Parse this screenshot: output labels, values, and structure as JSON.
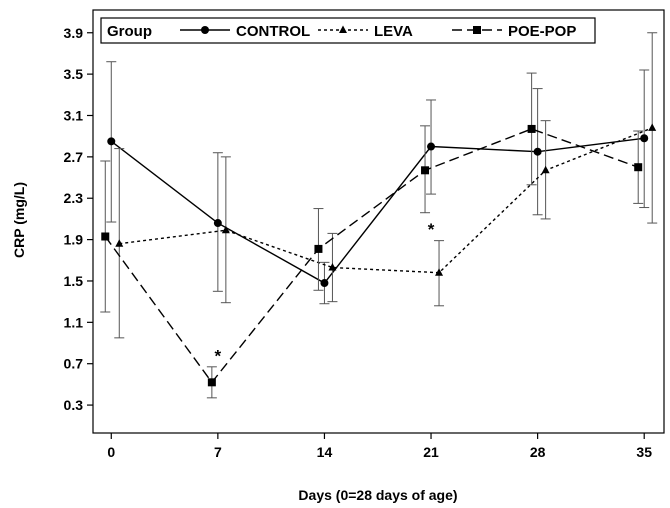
{
  "chart_data": {
    "type": "line",
    "xlabel": "Days (0=28 days of age)",
    "ylabel": "CRP (mg/L)",
    "x_ticks": [
      0,
      7,
      14,
      21,
      28,
      35
    ],
    "y_ticks": [
      0.3,
      0.7,
      1.1,
      1.5,
      1.9,
      2.3,
      2.7,
      3.1,
      3.5,
      3.9
    ],
    "xlim": [
      -1.2,
      36.3
    ],
    "ylim": [
      0.03,
      4.12
    ],
    "grid": false,
    "legend": {
      "title": "Group",
      "placement": "top"
    },
    "series": [
      {
        "name": "CONTROL",
        "marker": "circle",
        "line_style": "solid",
        "x": [
          0,
          7,
          14,
          21,
          28,
          35
        ],
        "y": [
          2.85,
          2.06,
          1.48,
          2.8,
          2.75,
          2.88
        ],
        "err_low": [
          2.07,
          1.4,
          1.28,
          2.34,
          2.14,
          2.21
        ],
        "err_high": [
          3.62,
          2.74,
          1.68,
          3.25,
          3.36,
          3.54
        ]
      },
      {
        "name": "LEVA",
        "marker": "triangle",
        "line_style": "dotted",
        "x": [
          0,
          7,
          14,
          21,
          28,
          35
        ],
        "y": [
          1.86,
          1.99,
          1.63,
          1.58,
          2.57,
          2.98
        ],
        "err_low": [
          0.95,
          1.29,
          1.3,
          1.26,
          2.1,
          2.06
        ],
        "err_high": [
          2.78,
          2.7,
          1.96,
          1.89,
          3.05,
          3.9
        ]
      },
      {
        "name": "POE-POP",
        "marker": "square",
        "line_style": "dashed",
        "x": [
          0,
          7,
          14,
          21,
          28,
          35
        ],
        "y": [
          1.93,
          0.52,
          1.81,
          2.57,
          2.97,
          2.6
        ],
        "err_low": [
          1.2,
          0.37,
          1.41,
          2.16,
          2.43,
          2.25
        ],
        "err_high": [
          2.66,
          0.67,
          2.2,
          3.0,
          3.51,
          2.95
        ]
      }
    ],
    "annotations": [
      {
        "text": "*",
        "x": 7,
        "y": 0.8
      },
      {
        "text": "*",
        "x": 21,
        "y": 2.02
      }
    ]
  }
}
